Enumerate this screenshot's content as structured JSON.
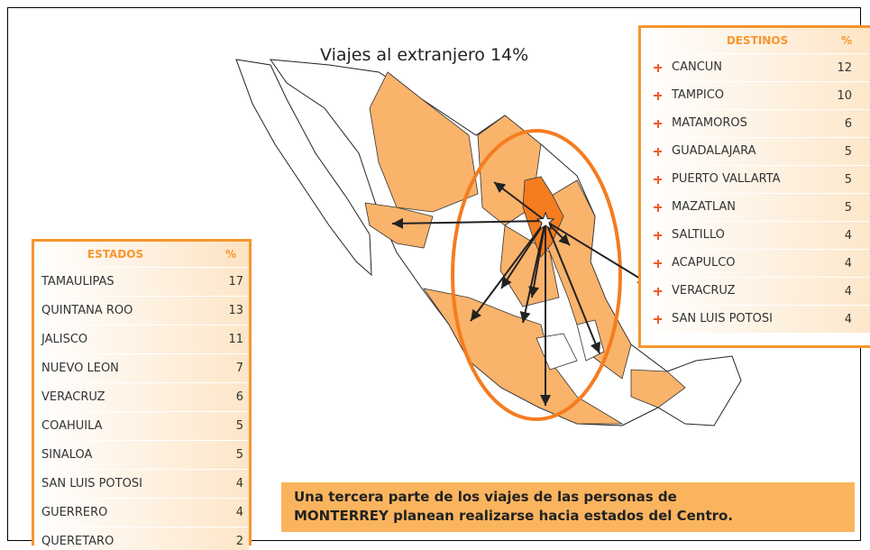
{
  "title": "Viajes al extranjero 14%",
  "destinos": {
    "header": [
      "DESTINOS",
      "%"
    ],
    "rows": [
      [
        "CANCUN",
        12
      ],
      [
        "TAMPICO",
        10
      ],
      [
        "MATAMOROS",
        6
      ],
      [
        "GUADALAJARA",
        5
      ],
      [
        "PUERTO VALLARTA",
        5
      ],
      [
        "MAZATLAN",
        5
      ],
      [
        "SALTILLO",
        4
      ],
      [
        "ACAPULCO",
        4
      ],
      [
        "VERACRUZ",
        4
      ],
      [
        "SAN LUIS POTOSI",
        4
      ]
    ]
  },
  "estados": {
    "header": [
      "ESTADOS",
      "%"
    ],
    "rows": [
      [
        "TAMAULIPAS",
        17
      ],
      [
        "QUINTANA ROO",
        13
      ],
      [
        "JALISCO",
        11
      ],
      [
        "NUEVO LEON",
        7
      ],
      [
        "VERACRUZ",
        6
      ],
      [
        "COAHUILA",
        5
      ],
      [
        "SINALOA",
        5
      ],
      [
        "SAN LUIS POTOSI",
        4
      ],
      [
        "GUERRERO",
        4
      ],
      [
        "QUERETARO",
        2
      ]
    ]
  },
  "caption": [
    "Una tercera parte de los viajes de las personas de",
    "MONTERREY planean realizarse hacia estados del Centro."
  ]
}
